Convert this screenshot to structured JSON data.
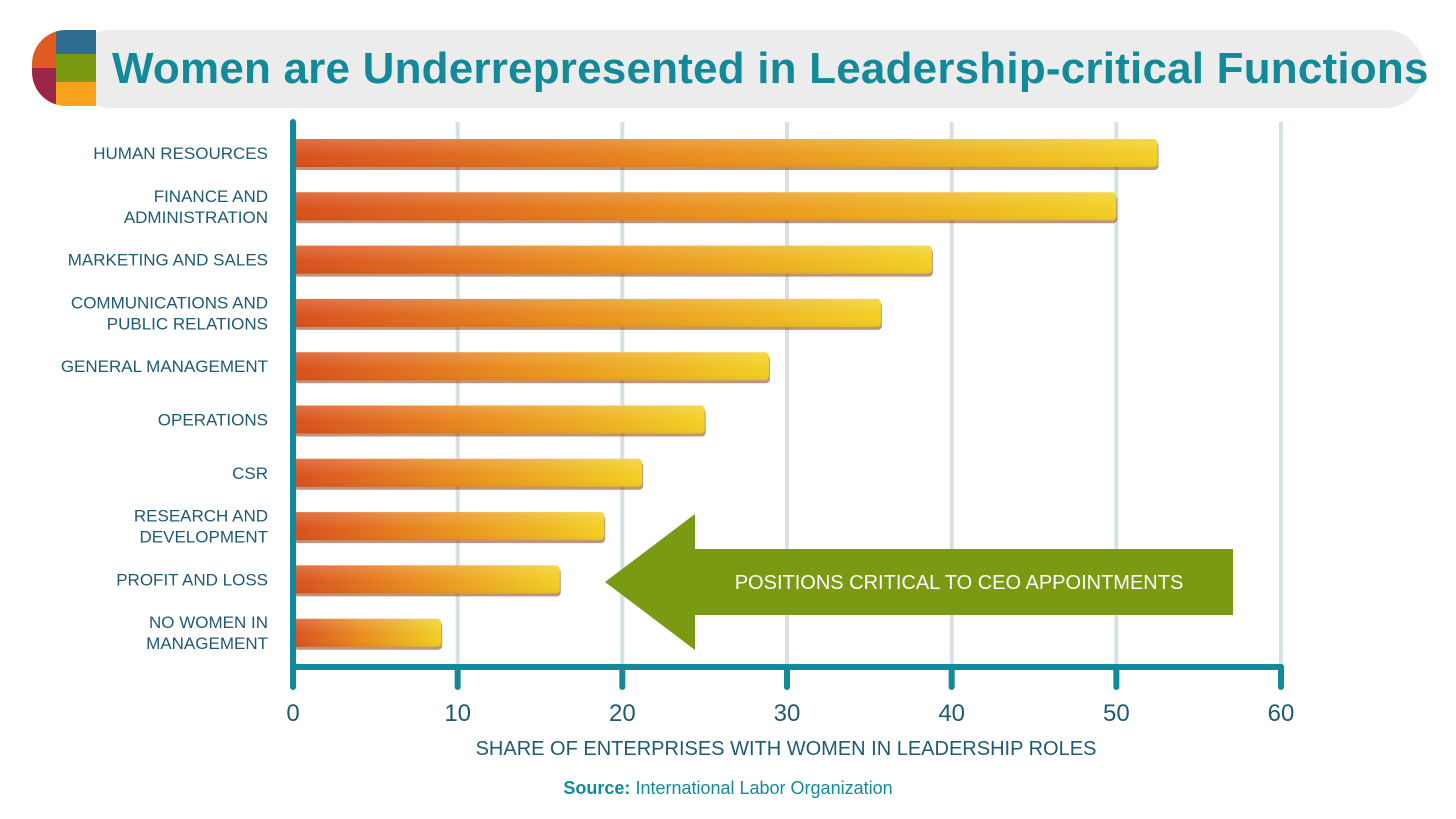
{
  "title": "Women are Underrepresented in Leadership-critical Functions",
  "source": {
    "label": "Source:",
    "text": "International Labor Organization"
  },
  "callout": "POSITIONS CRITICAL TO CEO APPOINTMENTS",
  "colors": {
    "title": "#138a9a",
    "axis": "#138a9a",
    "grid": "#d7e1e3",
    "bar_start": "#d9501f",
    "bar_mid": "#e98c1e",
    "bar_end": "#f2d024",
    "callout": "#7a9a14",
    "logo": [
      "#e15a22",
      "#2f6b8e",
      "#9b2548",
      "#7a9a14",
      "#f7a21b"
    ]
  },
  "chart_data": {
    "type": "bar",
    "orientation": "horizontal",
    "title": "Women are Underrepresented in Leadership-critical Functions",
    "xlabel": "SHARE OF ENTERPRISES WITH WOMEN IN LEADERSHIP ROLES",
    "ylabel": "",
    "xlim": [
      0,
      60
    ],
    "xticks": [
      0,
      10,
      20,
      30,
      40,
      50,
      60
    ],
    "grid": "vertical",
    "legend": "none",
    "categories": [
      [
        "HUMAN RESOURCES"
      ],
      [
        "FINANCE AND",
        "ADMINISTRATION"
      ],
      [
        "MARKETING AND SALES"
      ],
      [
        "COMMUNICATIONS AND",
        "PUBLIC RELATIONS"
      ],
      [
        "GENERAL MANAGEMENT"
      ],
      [
        "OPERATIONS"
      ],
      [
        "CSR"
      ],
      [
        "RESEARCH AND",
        "DEVELOPMENT"
      ],
      [
        "PROFIT AND LOSS"
      ],
      [
        "NO WOMEN IN",
        "MANAGEMENT"
      ]
    ],
    "values": [
      52.5,
      50,
      38.8,
      35.7,
      28.9,
      25,
      21.2,
      18.9,
      16.2,
      9
    ]
  }
}
